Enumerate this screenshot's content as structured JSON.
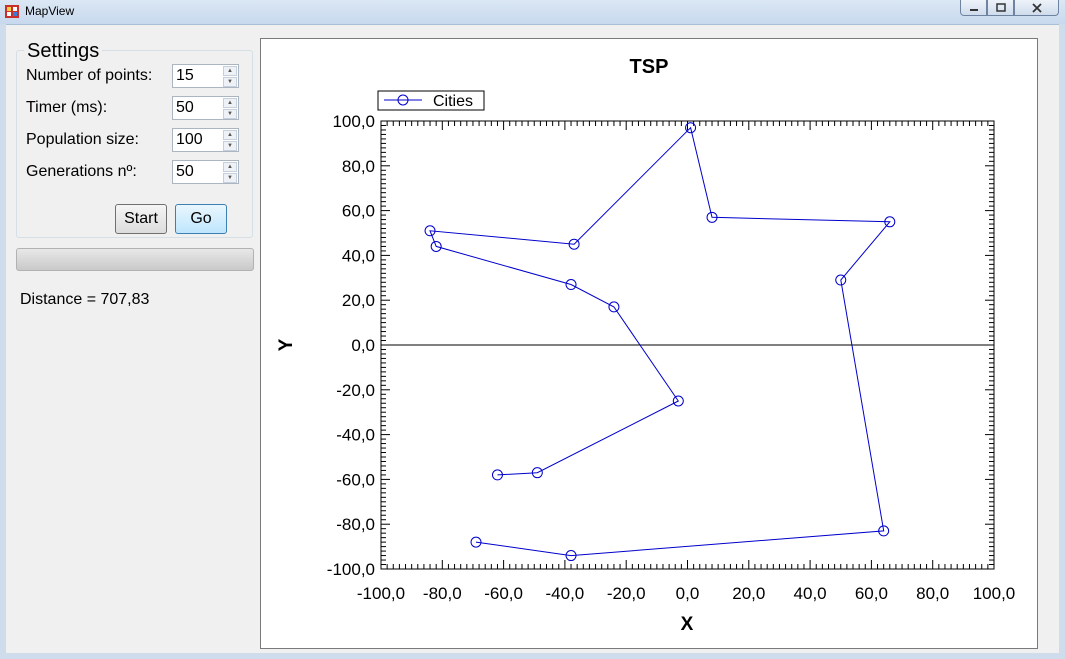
{
  "window": {
    "title": "MapView"
  },
  "settings": {
    "title": "Settings",
    "fields": [
      {
        "label": "Number of points:",
        "value": "15"
      },
      {
        "label": "Timer (ms):",
        "value": "50"
      },
      {
        "label": "Population size:",
        "value": "100"
      },
      {
        "label": "Generations nº:",
        "value": "50"
      }
    ],
    "start_label": "Start",
    "go_label": "Go"
  },
  "progress": {
    "value": 0
  },
  "status": {
    "distance": "Distance = 707,83"
  },
  "chart_data": {
    "type": "line",
    "title": "TSP",
    "xlabel": "X",
    "ylabel": "Y",
    "xlim": [
      -100,
      100
    ],
    "ylim": [
      -100,
      100
    ],
    "x_ticks": [
      "-100,0",
      "-80,0",
      "-60,0",
      "-40,0",
      "-20,0",
      "0,0",
      "20,0",
      "40,0",
      "60,0",
      "80,0",
      "100,0"
    ],
    "y_ticks": [
      "100,0",
      "80,0",
      "60,0",
      "40,0",
      "20,0",
      "0,0",
      "-20,0",
      "-40,0",
      "-60,0",
      "-80,0",
      "-100,0"
    ],
    "legend": {
      "position": "top-left",
      "entries": [
        "Cities"
      ]
    },
    "series": [
      {
        "name": "Cities",
        "color": "#0000cc",
        "marker": "circle-open",
        "points": [
          [
            -62,
            -58
          ],
          [
            -49,
            -57
          ],
          [
            -3,
            -25
          ],
          [
            -24,
            17
          ],
          [
            -38,
            27
          ],
          [
            -82,
            44
          ],
          [
            -84,
            51
          ],
          [
            -37,
            45
          ],
          [
            1,
            97
          ],
          [
            8,
            57
          ],
          [
            66,
            55
          ],
          [
            50,
            29
          ],
          [
            64,
            -83
          ],
          [
            -38,
            -94
          ],
          [
            -69,
            -88
          ]
        ]
      }
    ]
  }
}
